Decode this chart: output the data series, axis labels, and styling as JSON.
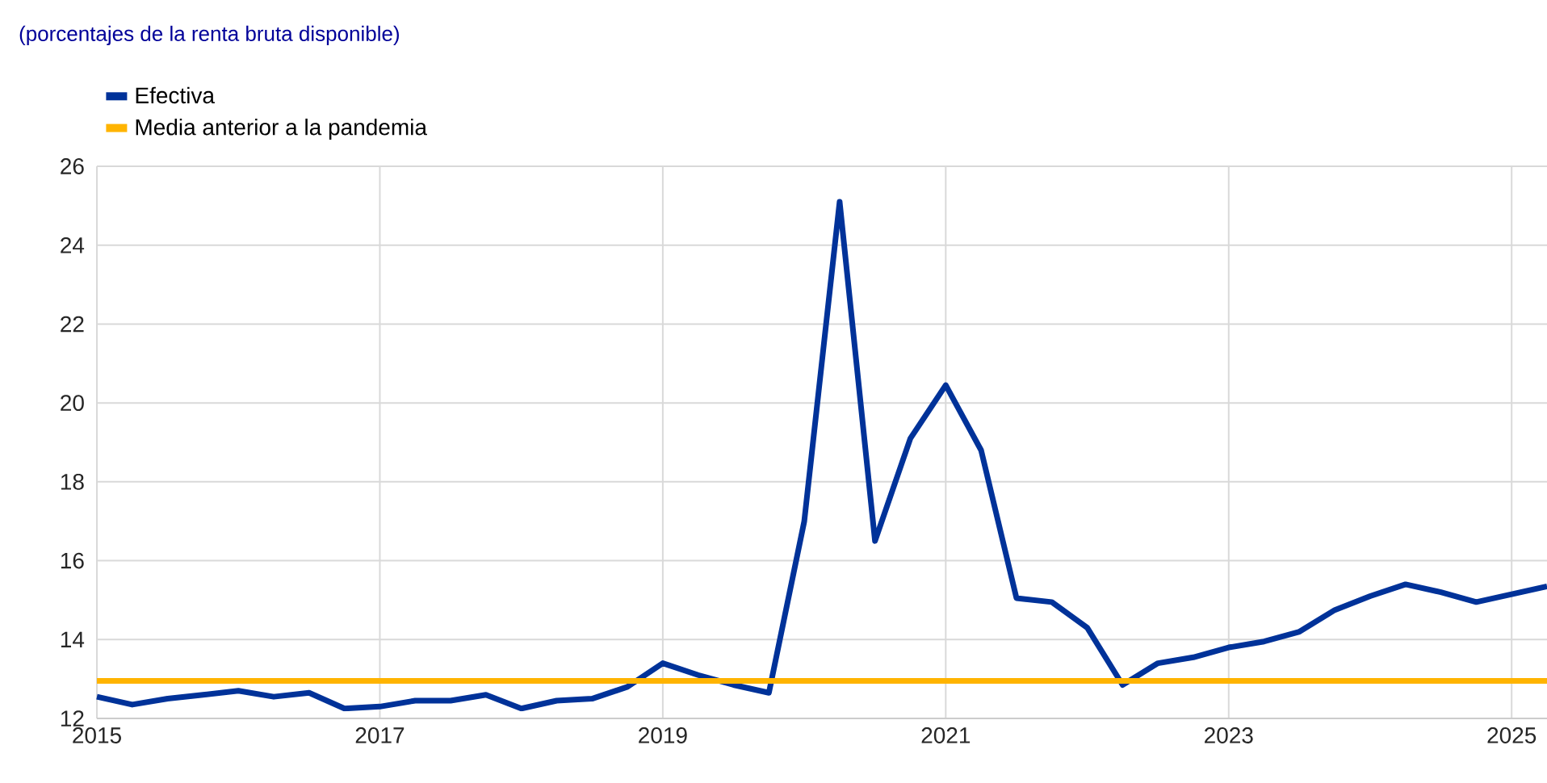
{
  "chart_data": {
    "type": "line",
    "subtitle": "(porcentajes de la renta bruta disponible)",
    "series": [
      {
        "name": "Efectiva",
        "color": "#003299",
        "x": [
          2015,
          2015.25,
          2015.5,
          2015.75,
          2016,
          2016.25,
          2016.5,
          2016.75,
          2017,
          2017.25,
          2017.5,
          2017.75,
          2018,
          2018.25,
          2018.5,
          2018.75,
          2019,
          2019.25,
          2019.5,
          2019.75,
          2020,
          2020.25,
          2020.5,
          2020.75,
          2021,
          2021.25,
          2021.5,
          2021.75,
          2022,
          2022.25,
          2022.5,
          2022.75,
          2023,
          2023.25,
          2023.5,
          2023.75,
          2024,
          2024.25,
          2024.5,
          2024.75,
          2025,
          2025.25
        ],
        "values": [
          12.55,
          12.35,
          12.5,
          12.6,
          12.7,
          12.55,
          12.65,
          12.25,
          12.3,
          12.45,
          12.45,
          12.6,
          12.25,
          12.45,
          12.5,
          12.8,
          13.4,
          13.1,
          12.85,
          12.65,
          17.0,
          25.1,
          16.5,
          19.1,
          20.45,
          18.8,
          15.05,
          14.95,
          14.3,
          12.85,
          13.4,
          13.55,
          13.8,
          13.95,
          14.2,
          14.75,
          15.1,
          15.4,
          15.2,
          14.95,
          15.15,
          15.35
        ]
      },
      {
        "name": "Media anterior a la pandemia",
        "color": "#ffb400",
        "x": [
          2015,
          2025.25
        ],
        "values": [
          12.95,
          12.95
        ]
      }
    ],
    "xlim": [
      2015,
      2025.25
    ],
    "xticks": [
      2015,
      2017,
      2019,
      2021,
      2023,
      2025
    ],
    "ylim": [
      12,
      26
    ],
    "yticks": [
      12,
      14,
      16,
      18,
      20,
      22,
      24,
      26
    ],
    "grid": true,
    "legend": "top left",
    "marker": "none",
    "line_style": "solid"
  }
}
